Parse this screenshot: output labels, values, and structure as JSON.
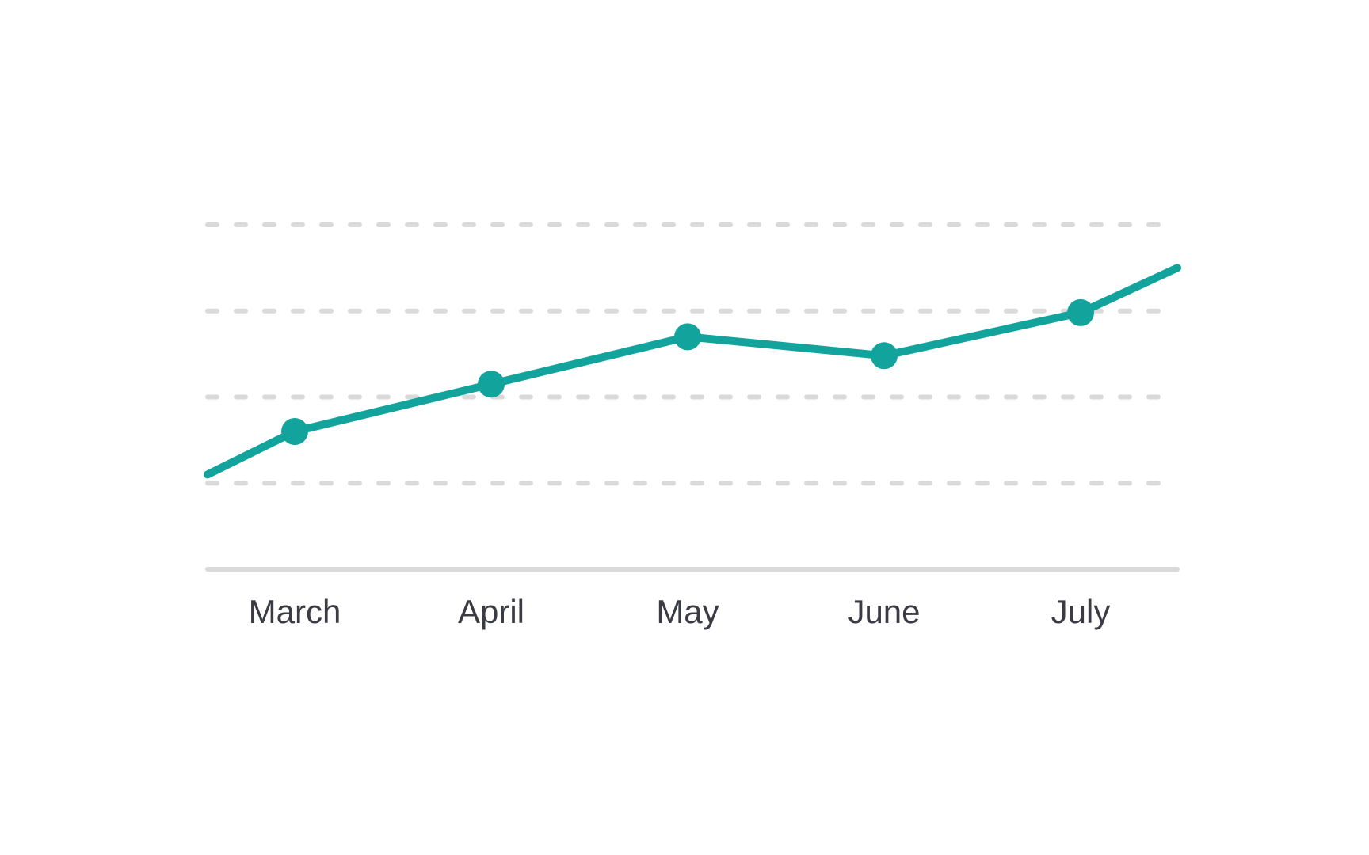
{
  "chart_data": {
    "type": "line",
    "title": "",
    "xlabel": "",
    "ylabel": "",
    "categories": [
      "March",
      "April",
      "May",
      "June",
      "July"
    ],
    "series": [
      {
        "values": [
          2.6,
          3.15,
          3.7,
          3.48,
          3.98
        ],
        "lead_in_value": 2.1,
        "trail_value": 4.5
      }
    ],
    "ylim": [
      1,
      5
    ],
    "grid": true,
    "grid_values": [
      2,
      3,
      4,
      5
    ],
    "legend": "none",
    "colors": {
      "line": "#12a39c",
      "grid": "#dadada",
      "axis": "#dadada",
      "label": "#3a3b43"
    }
  }
}
